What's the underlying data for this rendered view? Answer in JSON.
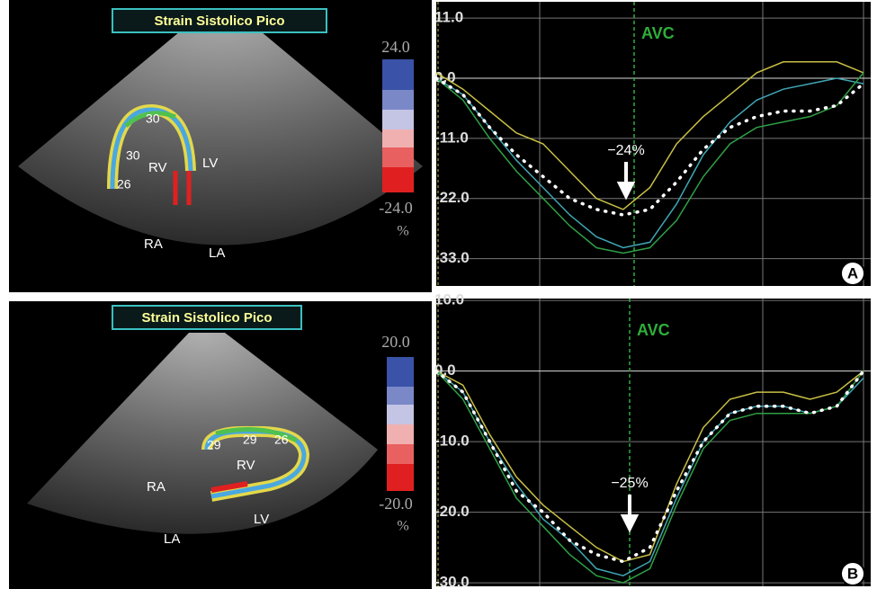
{
  "chart_data": [
    {
      "type": "line",
      "ylim": [
        -38,
        13
      ],
      "yticks": [
        {
          "value": 11,
          "label": "11.0"
        },
        {
          "value": 0,
          "label": "0.0"
        },
        {
          "value": -11,
          "label": "-11.0"
        },
        {
          "value": -22,
          "label": "-22.0"
        },
        {
          "value": -33,
          "label": "-33.0"
        }
      ],
      "grid": true,
      "annotations": [
        "AVC",
        "−24%"
      ],
      "panel_label": "A",
      "series": [
        {
          "color": "#c8bf45",
          "values": [
            1,
            -2,
            -6,
            -10,
            -12,
            -17,
            -22,
            -24,
            -20,
            -12,
            -7,
            -3,
            1,
            3,
            3,
            3,
            1
          ]
        },
        {
          "color": "#3fa6b4",
          "values": [
            0,
            -3,
            -9,
            -15,
            -20,
            -25,
            -29,
            -31,
            -30,
            -23,
            -14,
            -8,
            -4,
            -2,
            -1,
            0,
            -1
          ]
        },
        {
          "color": "#2f9f45",
          "values": [
            0,
            -4,
            -11,
            -17,
            -22,
            -27,
            -31,
            -32,
            -31,
            -26,
            -18,
            -12,
            -9,
            -8,
            -7,
            -5,
            1
          ]
        },
        {
          "color": "#ffffff",
          "style": "dotted",
          "values": [
            0,
            -3,
            -9,
            -14,
            -18,
            -22,
            -24,
            -25,
            -24,
            -19,
            -13,
            -9,
            -7,
            -6,
            -6,
            -5,
            -1
          ]
        }
      ]
    },
    {
      "type": "line",
      "ylim": [
        -30.5,
        9.5
      ],
      "yticks": [
        {
          "value": 10,
          "label": "10.0"
        },
        {
          "value": 0,
          "label": "0.0"
        },
        {
          "value": -10,
          "label": "-10.0"
        },
        {
          "value": -20,
          "label": "-20.0"
        },
        {
          "value": -30,
          "label": "-30.0"
        }
      ],
      "grid": true,
      "annotations": [
        "AVC",
        "−25%"
      ],
      "panel_label": "B",
      "series": [
        {
          "color": "#c8bf45",
          "values": [
            0,
            -2,
            -9,
            -15,
            -19,
            -22,
            -25,
            -27,
            -26,
            -16,
            -8,
            -4,
            -3,
            -3,
            -4,
            -3,
            0
          ]
        },
        {
          "color": "#3fa6b4",
          "values": [
            0,
            -3,
            -10,
            -16,
            -21,
            -24,
            -28,
            -29,
            -27,
            -18,
            -10,
            -6,
            -5,
            -5,
            -6,
            -5,
            -1
          ]
        },
        {
          "color": "#2f9f45",
          "values": [
            0,
            -4,
            -11,
            -18,
            -22,
            -26,
            -29,
            -30,
            -28,
            -19,
            -11,
            -7,
            -6,
            -6,
            -6,
            -5,
            0
          ]
        },
        {
          "color": "#ffffff",
          "style": "dotted",
          "values": [
            0,
            -3,
            -10,
            -17,
            -20,
            -24,
            -26,
            -27,
            -25,
            -17,
            -10,
            -6,
            -5,
            -5,
            -6,
            -5,
            0
          ]
        }
      ]
    }
  ],
  "images": [
    {
      "title": "Strain Sistolico Pico",
      "scale_max": "24.0",
      "scale_min": "-24.0",
      "unit": "%",
      "labels": [
        "RV",
        "LV",
        "RA",
        "LA"
      ],
      "segment_labels": [
        "30",
        "30",
        "26"
      ]
    },
    {
      "title": "Strain Sistolico Pico",
      "scale_max": "20.0",
      "scale_min": "-20.0",
      "unit": "%",
      "labels": [
        "RV",
        "RA",
        "LV",
        "LA"
      ],
      "segment_labels": [
        "29",
        "29",
        "26"
      ]
    }
  ]
}
